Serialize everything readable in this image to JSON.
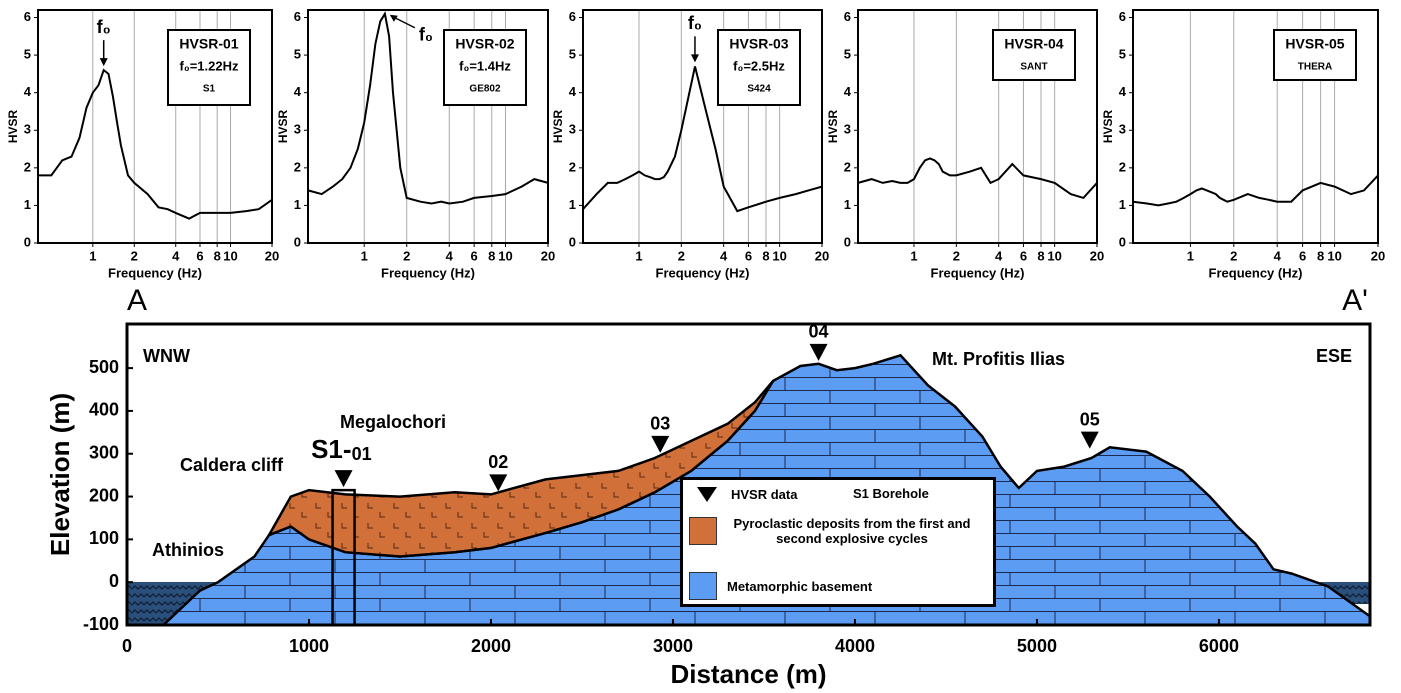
{
  "chart_data": [
    {
      "type": "line",
      "xscale": "log",
      "xlabel": "Frequency (Hz)",
      "ylabel": "HVSR",
      "x": [
        0.4,
        0.5,
        0.6,
        0.7,
        0.8,
        0.9,
        1,
        1.1,
        1.2,
        1.3,
        1.4,
        1.5,
        1.6,
        1.8,
        2,
        2.5,
        3,
        3.5,
        4,
        5,
        6,
        8,
        10,
        13,
        16,
        20
      ],
      "series": [
        {
          "name": "HVSR-01",
          "color": "#000000",
          "values": [
            1.8,
            1.8,
            2.2,
            2.3,
            2.8,
            3.6,
            4.0,
            4.2,
            4.6,
            4.5,
            3.9,
            3.2,
            2.6,
            1.8,
            1.6,
            1.3,
            0.95,
            0.9,
            0.8,
            0.65,
            0.8,
            0.8,
            0.8,
            0.85,
            0.9,
            1.15
          ]
        }
      ],
      "box": [
        "f₀=1.22Hz",
        "S1"
      ],
      "peak_label": "f₀",
      "xlim": [
        0.4,
        20
      ],
      "xticks": [
        1,
        2,
        4,
        6,
        8,
        10,
        20
      ],
      "ylim": [
        0,
        6.2
      ],
      "yticks": [
        0,
        1,
        2,
        3,
        4,
        5,
        6
      ],
      "grid": true
    },
    {
      "type": "line",
      "xscale": "log",
      "xlabel": "Frequency (Hz)",
      "ylabel": "HVSR",
      "x": [
        0.4,
        0.5,
        0.6,
        0.7,
        0.8,
        0.9,
        1,
        1.1,
        1.2,
        1.3,
        1.4,
        1.5,
        1.6,
        1.8,
        2,
        2.5,
        3,
        3.5,
        4,
        5,
        6,
        8,
        10,
        13,
        16,
        20
      ],
      "series": [
        {
          "name": "HVSR-02",
          "color": "#000000",
          "values": [
            1.4,
            1.3,
            1.5,
            1.7,
            2.0,
            2.5,
            3.2,
            4.2,
            5.3,
            5.9,
            6.1,
            5.5,
            4.0,
            2.0,
            1.2,
            1.1,
            1.05,
            1.1,
            1.05,
            1.1,
            1.2,
            1.25,
            1.3,
            1.5,
            1.7,
            1.6
          ]
        }
      ],
      "box": [
        "f₀=1.4Hz",
        "GE802"
      ],
      "peak_label": "f₀",
      "xlim": [
        0.4,
        20
      ],
      "xticks": [
        1,
        2,
        4,
        6,
        8,
        10,
        20
      ],
      "ylim": [
        0,
        6.2
      ],
      "yticks": [
        0,
        1,
        2,
        3,
        4,
        5,
        6
      ],
      "grid": true
    },
    {
      "type": "line",
      "xscale": "log",
      "xlabel": "Frequency (Hz)",
      "ylabel": "HVSR",
      "x": [
        0.4,
        0.5,
        0.6,
        0.7,
        0.8,
        0.9,
        1,
        1.1,
        1.2,
        1.3,
        1.4,
        1.5,
        1.6,
        1.8,
        2,
        2.5,
        3,
        3.5,
        4,
        5,
        6,
        8,
        10,
        13,
        16,
        20
      ],
      "series": [
        {
          "name": "HVSR-03",
          "color": "#000000",
          "values": [
            0.9,
            1.3,
            1.6,
            1.6,
            1.7,
            1.8,
            1.9,
            1.8,
            1.75,
            1.7,
            1.7,
            1.75,
            1.9,
            2.3,
            3.0,
            4.7,
            3.5,
            2.5,
            1.5,
            0.85,
            0.95,
            1.1,
            1.2,
            1.3,
            1.4,
            1.5
          ]
        }
      ],
      "box": [
        "f₀=2.5Hz",
        "S424"
      ],
      "peak_label": "f₀",
      "xlim": [
        0.4,
        20
      ],
      "xticks": [
        1,
        2,
        4,
        6,
        8,
        10,
        20
      ],
      "ylim": [
        0,
        6.2
      ],
      "yticks": [
        0,
        1,
        2,
        3,
        4,
        5,
        6
      ],
      "grid": true
    },
    {
      "type": "line",
      "xscale": "log",
      "xlabel": "Frequency (Hz)",
      "ylabel": "HVSR",
      "x": [
        0.4,
        0.5,
        0.6,
        0.7,
        0.8,
        0.9,
        1,
        1.1,
        1.2,
        1.3,
        1.4,
        1.5,
        1.6,
        1.8,
        2,
        2.5,
        3,
        3.5,
        4,
        5,
        6,
        8,
        10,
        13,
        16,
        20
      ],
      "series": [
        {
          "name": "HVSR-04",
          "color": "#000000",
          "values": [
            1.6,
            1.7,
            1.6,
            1.65,
            1.6,
            1.6,
            1.7,
            2.0,
            2.2,
            2.25,
            2.2,
            2.1,
            1.9,
            1.8,
            1.8,
            1.9,
            2.0,
            1.6,
            1.7,
            2.1,
            1.8,
            1.7,
            1.6,
            1.3,
            1.2,
            1.6
          ]
        }
      ],
      "box": [
        "SANT"
      ],
      "xlim": [
        0.4,
        20
      ],
      "xticks": [
        1,
        2,
        4,
        6,
        8,
        10,
        20
      ],
      "ylim": [
        0,
        6.2
      ],
      "yticks": [
        0,
        1,
        2,
        3,
        4,
        5,
        6
      ],
      "grid": true
    },
    {
      "type": "line",
      "xscale": "log",
      "xlabel": "Frequency (Hz)",
      "ylabel": "HVSR",
      "x": [
        0.4,
        0.5,
        0.6,
        0.7,
        0.8,
        0.9,
        1,
        1.1,
        1.2,
        1.3,
        1.4,
        1.5,
        1.6,
        1.8,
        2,
        2.5,
        3,
        3.5,
        4,
        5,
        6,
        8,
        10,
        13,
        16,
        20
      ],
      "series": [
        {
          "name": "HVSR-05",
          "color": "#000000",
          "values": [
            1.1,
            1.05,
            1.0,
            1.05,
            1.1,
            1.2,
            1.3,
            1.4,
            1.45,
            1.4,
            1.35,
            1.3,
            1.2,
            1.1,
            1.15,
            1.3,
            1.2,
            1.15,
            1.1,
            1.1,
            1.4,
            1.6,
            1.5,
            1.3,
            1.4,
            1.8
          ]
        }
      ],
      "box": [
        "THERA"
      ],
      "xlim": [
        0.4,
        20
      ],
      "xticks": [
        1,
        2,
        4,
        6,
        8,
        10,
        20
      ],
      "ylim": [
        0,
        6.2
      ],
      "yticks": [
        0,
        1,
        2,
        3,
        4,
        5,
        6
      ],
      "grid": true
    },
    {
      "type": "section",
      "xlabel": "Distance (m)",
      "ylabel": "Elevation (m)",
      "end_labels": [
        "A",
        "A'"
      ],
      "xlim": [
        0,
        6830
      ],
      "xticks": [
        0,
        1000,
        2000,
        3000,
        4000,
        5000,
        6000
      ],
      "ylim": [
        -100,
        603
      ],
      "yticks": [
        -100,
        0,
        100,
        200,
        300,
        400,
        500
      ],
      "series": [
        {
          "name": "Metamorphic basement",
          "color": "#5c9cf2",
          "x": [
            0,
            200,
            400,
            500,
            700,
            780,
            900,
            1000,
            1200,
            1500,
            1800,
            2000,
            2300,
            2500,
            2700,
            2900,
            3100,
            3300,
            3450,
            3550,
            3700,
            3800,
            3900,
            4000,
            4100,
            4250,
            4400,
            4550,
            4700,
            4800,
            4900,
            5000,
            5150,
            5300,
            5400,
            5600,
            5800,
            5950,
            6100,
            6200,
            6300,
            6400,
            6600,
            6830
          ],
          "values": [
            -100,
            -100,
            -20,
            0,
            60,
            110,
            130,
            100,
            70,
            60,
            70,
            80,
            115,
            140,
            170,
            210,
            260,
            330,
            400,
            470,
            505,
            510,
            495,
            500,
            510,
            530,
            460,
            410,
            340,
            270,
            220,
            260,
            270,
            290,
            315,
            305,
            260,
            200,
            130,
            90,
            30,
            20,
            -10,
            -80
          ]
        },
        {
          "name": "Pyroclastic deposits from the first and second explosive cycles",
          "color": "#d2703a",
          "x": [
            780,
            900,
            1000,
            1200,
            1500,
            1800,
            2000,
            2300,
            2500,
            2700,
            2900,
            3100,
            3300,
            3450,
            3550
          ],
          "values": [
            110,
            200,
            215,
            205,
            200,
            210,
            205,
            240,
            250,
            260,
            290,
            330,
            370,
            420,
            470
          ],
          "base": [
            110,
            130,
            100,
            70,
            60,
            70,
            80,
            115,
            140,
            170,
            210,
            260,
            330,
            400,
            470
          ]
        }
      ],
      "stations": {
        "name": "HVSR data",
        "x": [
          1190,
          2040,
          2930,
          3800,
          5290
        ],
        "values": [
          215,
          205,
          295,
          510,
          305
        ],
        "labels": [
          "01",
          "02",
          "03",
          "04",
          "05"
        ]
      },
      "borehole": {
        "name": "S1 Borehole",
        "label": "S1-",
        "x": 1190,
        "top": 215,
        "bottom": -100
      },
      "annotations": [
        "WNW",
        "ESE",
        "Caldera cliff",
        "Megalochori",
        "Athinios",
        "Mt. Profitis Ilias"
      ]
    }
  ]
}
